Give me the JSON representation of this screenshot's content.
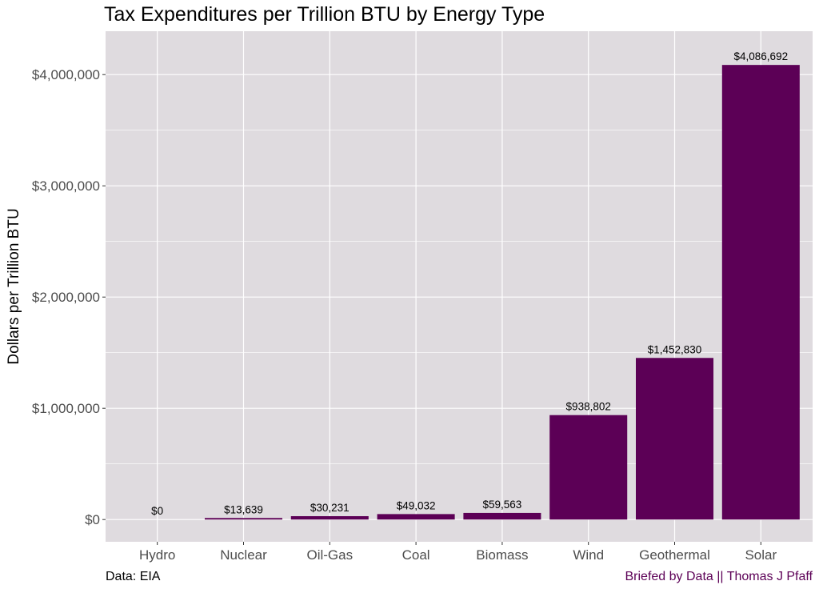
{
  "chart_data": {
    "type": "bar",
    "title": "Tax Expenditures per Trillion BTU by Energy Type",
    "xlabel": "",
    "ylabel": "Dollars per Trillion BTU",
    "categories": [
      "Hydro",
      "Nuclear",
      "Oil-Gas",
      "Coal",
      "Biomass",
      "Wind",
      "Geothermal",
      "Solar"
    ],
    "values": [
      0,
      13639,
      30231,
      49032,
      59563,
      938802,
      1452830,
      4086692
    ],
    "value_labels": [
      "$0",
      "$13,639",
      "$30,231",
      "$49,032",
      "$59,563",
      "$938,802",
      "$1,452,830",
      "$4,086,692"
    ],
    "ylim": [
      -200000,
      4390000
    ],
    "yticks": [
      0,
      1000000,
      2000000,
      3000000,
      4000000
    ],
    "ytick_labels": [
      "$0",
      "$1,000,000",
      "$2,000,000",
      "$3,000,000",
      "$4,000,000"
    ],
    "grid": true,
    "legend": "none",
    "caption_left": "Data: EIA",
    "caption_right": "Briefed by Data || Thomas J Pfaff",
    "colors": {
      "bar": "#5c0056",
      "panel": "#dfdbdf",
      "grid": "#ffffff",
      "caption_right": "#5c0056"
    }
  }
}
